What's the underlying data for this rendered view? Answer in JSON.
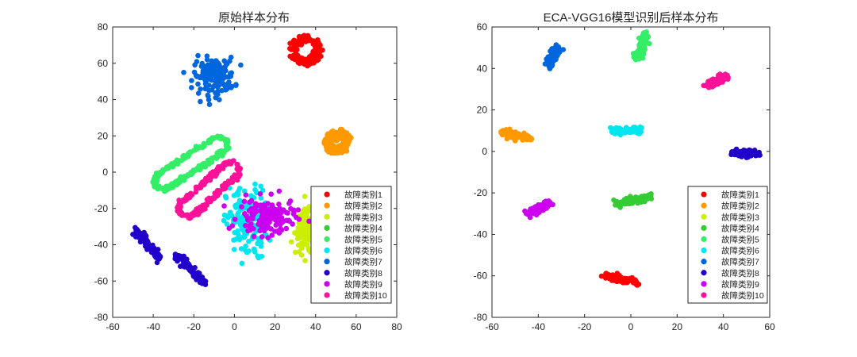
{
  "figure": {
    "background": "#ffffff"
  },
  "chart_data": [
    {
      "type": "scatter",
      "title": "原始样本分布",
      "xlabel": "",
      "ylabel": "",
      "xlim": [
        -60,
        80
      ],
      "ylim": [
        -80,
        80
      ],
      "xticks": [
        -60,
        -40,
        -20,
        0,
        20,
        40,
        60,
        80
      ],
      "yticks": [
        -80,
        -60,
        -40,
        -20,
        0,
        20,
        40,
        60,
        80
      ],
      "grid": false,
      "legend_position": "bottom-right",
      "series": [
        {
          "name": "故障类别1",
          "color": "#ff0000",
          "shape": "ring",
          "center": [
            35,
            67
          ],
          "radius": 6.5
        },
        {
          "name": "故障类别2",
          "color": "#ff9900",
          "shape": "spiral",
          "center": [
            50,
            17
          ],
          "radius": 7
        },
        {
          "name": "故障类别3",
          "color": "#ccee00",
          "shape": "blob",
          "center": [
            36,
            -33
          ],
          "spread": [
            3,
            6
          ]
        },
        {
          "name": "故障类别4",
          "color": "#33cc33",
          "shape": "none"
        },
        {
          "name": "故障类别5",
          "color": "#33ee66",
          "shape": "loop",
          "from": [
            -35,
            -5
          ],
          "to": [
            -8,
            15
          ],
          "width": 4.5
        },
        {
          "name": "故障类别6",
          "color": "#00e6ee",
          "shape": "blob",
          "center": [
            6,
            -28
          ],
          "spread": [
            5,
            10
          ]
        },
        {
          "name": "故障类别7",
          "color": "#0066dd",
          "shape": "blob",
          "center": [
            -10,
            53
          ],
          "spread": [
            5,
            5
          ]
        },
        {
          "name": "故障类别8",
          "color": "#2200cc",
          "shape": "lines",
          "segments": [
            [
              [
                -48,
                -32
              ],
              [
                -37,
                -48
              ]
            ],
            [
              [
                -29,
                -45
              ],
              [
                -15,
                -61
              ]
            ]
          ]
        },
        {
          "name": "故障类别9",
          "color": "#cc00ee",
          "shape": "blob",
          "center": [
            16,
            -25
          ],
          "spread": [
            7,
            5
          ]
        },
        {
          "name": "故障类别10",
          "color": "#ff1199",
          "shape": "loop",
          "from": [
            -23,
            -20
          ],
          "to": [
            -2,
            1
          ],
          "width": 4.5
        }
      ]
    },
    {
      "type": "scatter",
      "title": "ECA-VGG16模型识别后样本分布",
      "xlabel": "",
      "ylabel": "",
      "xlim": [
        -60,
        60
      ],
      "ylim": [
        -80,
        60
      ],
      "xticks": [
        -60,
        -40,
        -20,
        0,
        20,
        40,
        60
      ],
      "yticks": [
        -80,
        -60,
        -40,
        -20,
        0,
        20,
        40,
        60
      ],
      "grid": false,
      "legend_position": "bottom-right",
      "series": [
        {
          "name": "故障类别1",
          "color": "#ff0000",
          "shape": "line",
          "from": [
            -11,
            -60
          ],
          "to": [
            3,
            -63
          ]
        },
        {
          "name": "故障类别2",
          "color": "#ff9900",
          "shape": "line",
          "from": [
            -56,
            9
          ],
          "to": [
            -44,
            7
          ]
        },
        {
          "name": "故障类别3",
          "color": "#ccee00",
          "shape": "none"
        },
        {
          "name": "故障类别4",
          "color": "#33cc33",
          "shape": "line",
          "from": [
            -6,
            -25
          ],
          "to": [
            9,
            -22
          ]
        },
        {
          "name": "故障类别5",
          "color": "#33ee66",
          "shape": "line",
          "from": [
            3,
            44
          ],
          "to": [
            6,
            57
          ]
        },
        {
          "name": "故障类别6",
          "color": "#00e6ee",
          "shape": "line",
          "from": [
            -8,
            10
          ],
          "to": [
            4,
            10
          ]
        },
        {
          "name": "故障类别7",
          "color": "#0066dd",
          "shape": "line",
          "from": [
            -36,
            41
          ],
          "to": [
            -32,
            50
          ]
        },
        {
          "name": "故障类别8",
          "color": "#2200cc",
          "shape": "line",
          "from": [
            44,
            -1
          ],
          "to": [
            55,
            -1
          ]
        },
        {
          "name": "故障类别9",
          "color": "#cc00ee",
          "shape": "line",
          "from": [
            -44,
            -30
          ],
          "to": [
            -35,
            -25
          ]
        },
        {
          "name": "故障类别10",
          "color": "#ff1199",
          "shape": "line",
          "from": [
            33,
            32
          ],
          "to": [
            41,
            36
          ]
        }
      ]
    }
  ]
}
